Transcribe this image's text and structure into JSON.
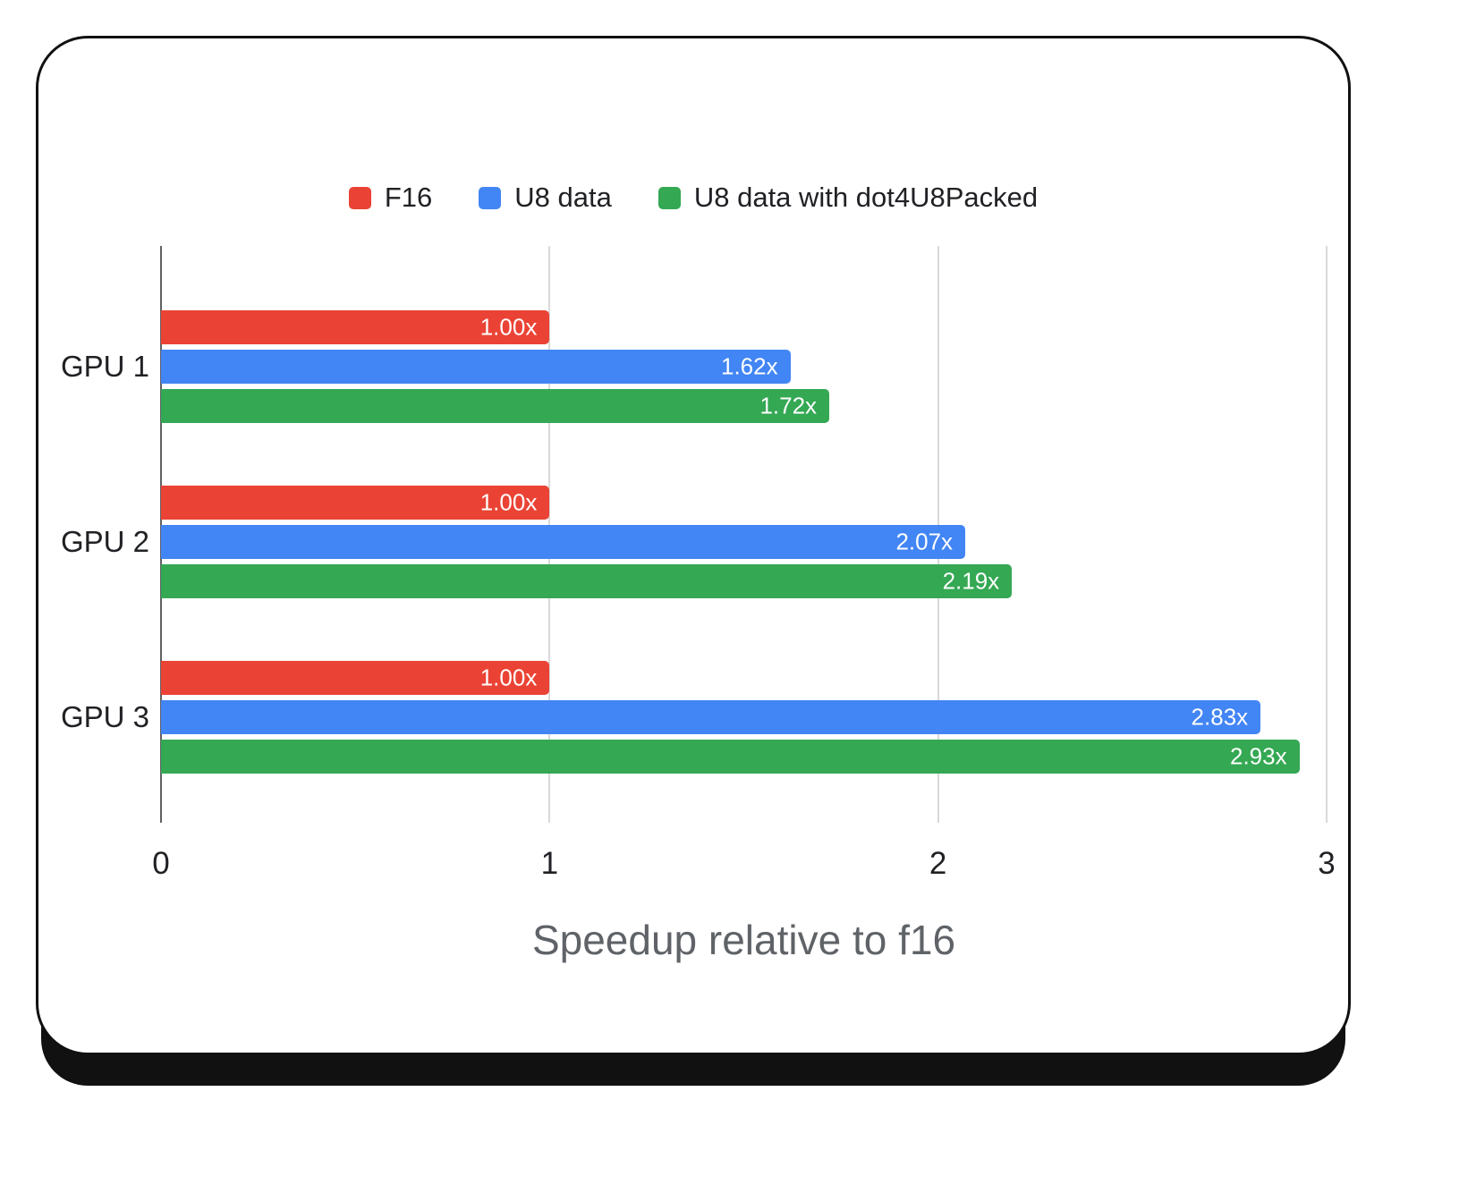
{
  "chart_data": {
    "type": "bar",
    "orientation": "horizontal",
    "title": "Speedup relative to f16",
    "categories": [
      "GPU 1",
      "GPU 2",
      "GPU 3"
    ],
    "series": [
      {
        "name": "F16",
        "color": "#ea4335",
        "values": [
          1.0,
          1.0,
          1.0
        ],
        "labels": [
          "1.00x",
          "1.00x",
          "1.00x"
        ]
      },
      {
        "name": "U8 data",
        "color": "#4285f4",
        "values": [
          1.62,
          2.07,
          2.83
        ],
        "labels": [
          "1.62x",
          "2.07x",
          "2.83x"
        ]
      },
      {
        "name": "U8 data with dot4U8Packed",
        "color": "#34a853",
        "values": [
          1.72,
          2.19,
          2.93
        ],
        "labels": [
          "1.72x",
          "2.19x",
          "2.93x"
        ]
      }
    ],
    "xlim": [
      0,
      3
    ],
    "x_ticks": [
      0,
      1,
      2,
      3
    ],
    "grid": true,
    "legend_position": "top",
    "value_label_color": "#ffffff",
    "baseline_color": "#616161",
    "gridline_color": "#d9d9d9"
  }
}
